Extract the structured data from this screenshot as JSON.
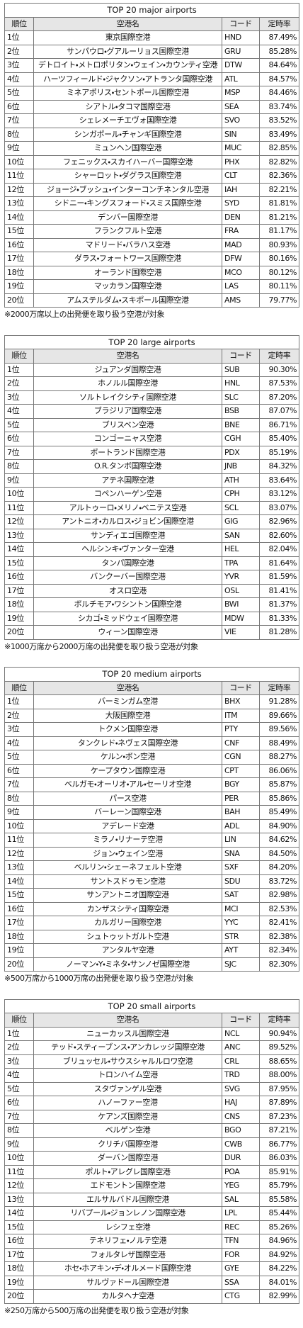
{
  "tables": [
    {
      "title": "TOP 20 major airports",
      "headers": [
        "順位",
        "空港名",
        "コード",
        "定時率"
      ],
      "rows": [
        [
          "1位",
          "東京国際空港",
          "HND",
          "87.49%"
        ],
        [
          "2位",
          "サンパウロ・グアルーリョス国際空港",
          "GRU",
          "85.28%"
        ],
        [
          "3位",
          "デトロイト・メトロポリタン・ウェイン・カウンティ空港",
          "DTW",
          "84.64%"
        ],
        [
          "4位",
          "ハーツフィールド・ジャクソン・アトランタ国際空港",
          "ATL",
          "84.57%"
        ],
        [
          "5位",
          "ミネアポリス・セントポール国際空港",
          "MSP",
          "84.46%"
        ],
        [
          "6位",
          "シアトル・タコマ国際空港",
          "SEA",
          "83.74%"
        ],
        [
          "7位",
          "シェレメーチエヴォ国際空港",
          "SVO",
          "83.52%"
        ],
        [
          "8位",
          "シンガポール・チャンギ国際空港",
          "SIN",
          "83.49%"
        ],
        [
          "9位",
          "ミュンヘン国際空港",
          "MUC",
          "82.85%"
        ],
        [
          "10位",
          "フェニックス・スカイハーバー国際空港",
          "PHX",
          "82.82%"
        ],
        [
          "11位",
          "シャーロット・ダグラス国際空港",
          "CLT",
          "82.36%"
        ],
        [
          "12位",
          "ジョージ・ブッシュ・インターコンチネンタル空港",
          "IAH",
          "82.21%"
        ],
        [
          "13位",
          "シドニー・キングスフォード・スミス国際空港",
          "SYD",
          "81.81%"
        ],
        [
          "14位",
          "デンバー国際空港",
          "DEN",
          "81.21%"
        ],
        [
          "15位",
          "フランクフルト空港",
          "FRA",
          "81.17%"
        ],
        [
          "16位",
          "マドリード・バラハス空港",
          "MAD",
          "80.93%"
        ],
        [
          "17位",
          "ダラス・フォートワース国際空港",
          "DFW",
          "80.16%"
        ],
        [
          "18位",
          "オーランド国際空港",
          "MCO",
          "80.12%"
        ],
        [
          "19位",
          "マッカラン国際空港",
          "LAS",
          "80.11%"
        ],
        [
          "20位",
          "アムステルダム・スキポール国際空港",
          "AMS",
          "79.77%"
        ]
      ],
      "note": "※2000万席以上の出発便を取り扱う空港が対象"
    },
    {
      "title": "TOP 20 large airports",
      "headers": [
        "順位",
        "空港名",
        "コード",
        "定時率"
      ],
      "rows": [
        [
          "1位",
          "ジュアンダ国際空港",
          "SUB",
          "90.30%"
        ],
        [
          "2位",
          "ホノルル国際空港",
          "HNL",
          "87.53%"
        ],
        [
          "3位",
          "ソルトレイクシティ国際空港",
          "SLC",
          "87.20%"
        ],
        [
          "4位",
          "ブラジリア国際空港",
          "BSB",
          "87.07%"
        ],
        [
          "5位",
          "ブリスベン空港",
          "BNE",
          "86.71%"
        ],
        [
          "6位",
          "コンゴーニャス空港",
          "CGH",
          "85.40%"
        ],
        [
          "7位",
          "ポートランド国際空港",
          "PDX",
          "85.19%"
        ],
        [
          "8位",
          "O.R.タンボ国際空港",
          "JNB",
          "84.32%"
        ],
        [
          "9位",
          "アテネ国際空港",
          "ATH",
          "83.64%"
        ],
        [
          "10位",
          "コペンハーゲン空港",
          "CPH",
          "83.12%"
        ],
        [
          "11位",
          "アルトゥーロ・メリノ・ベニテス空港",
          "SCL",
          "83.07%"
        ],
        [
          "12位",
          "アントニオ・カルロス・ジョビン国際空港",
          "GIG",
          "82.96%"
        ],
        [
          "13位",
          "サンディエゴ国際空港",
          "SAN",
          "82.60%"
        ],
        [
          "14位",
          "ヘルシンキ・ヴァンター空港",
          "HEL",
          "82.04%"
        ],
        [
          "15位",
          "タンパ国際空港",
          "TPA",
          "81.64%"
        ],
        [
          "16位",
          "バンクーバー国際空港",
          "YVR",
          "81.59%"
        ],
        [
          "17位",
          "オスロ空港",
          "OSL",
          "81.41%"
        ],
        [
          "18位",
          "ボルチモア・ワシントン国際空港",
          "BWI",
          "81.37%"
        ],
        [
          "19位",
          "シカゴ・ミッドウェイ国際空港",
          "MDW",
          "81.33%"
        ],
        [
          "20位",
          "ウィーン国際空港",
          "VIE",
          "81.28%"
        ]
      ],
      "note": "※1000万席から2000万席の出発便を取り扱う空港が対象"
    },
    {
      "title": "TOP 20 medium airports",
      "headers": [
        "順位",
        "空港名",
        "コード",
        "定時率"
      ],
      "rows": [
        [
          "1位",
          "バーミンガム空港",
          "BHX",
          "91.28%"
        ],
        [
          "2位",
          "大阪国際空港",
          "ITM",
          "89.66%"
        ],
        [
          "3位",
          "トクメン国際空港",
          "PTY",
          "89.56%"
        ],
        [
          "4位",
          "タンクレド・ネヴェス国際空港",
          "CNF",
          "88.49%"
        ],
        [
          "5位",
          "ケルン・ボン空港",
          "CGN",
          "88.27%"
        ],
        [
          "6位",
          "ケープタウン国際空港",
          "CPT",
          "86.06%"
        ],
        [
          "7位",
          "ベルガモ・オーリオ・アル・セーリオ空港",
          "BGY",
          "85.87%"
        ],
        [
          "8位",
          "パース空港",
          "PER",
          "85.86%"
        ],
        [
          "9位",
          "バーレーン国際空港",
          "BAH",
          "85.49%"
        ],
        [
          "10位",
          "アデレード空港",
          "ADL",
          "84.90%"
        ],
        [
          "11位",
          "ミラノ・リナーテ空港",
          "LIN",
          "84.62%"
        ],
        [
          "12位",
          "ジョン・ウェイン空港",
          "SNA",
          "84.50%"
        ],
        [
          "13位",
          "ベルリン・シェーネフェルト空港",
          "SXF",
          "84.20%"
        ],
        [
          "14位",
          "サントスドゥモン空港",
          "SDU",
          "83.72%"
        ],
        [
          "15位",
          "サンアントニオ国際空港",
          "SAT",
          "82.98%"
        ],
        [
          "16位",
          "カンザスシティ国際空港",
          "MCI",
          "82.53%"
        ],
        [
          "17位",
          "カルガリー国際空港",
          "YYC",
          "82.41%"
        ],
        [
          "18位",
          "シュトゥットガルト空港",
          "STR",
          "82.38%"
        ],
        [
          "19位",
          "アンタルヤ空港",
          "AYT",
          "82.34%"
        ],
        [
          "20位",
          "ノーマン・Y・ミネタ・サンノゼ国際空港",
          "SJC",
          "82.30%"
        ]
      ],
      "note": "※500万席から1000万席の出発便を取り扱う空港が対象"
    },
    {
      "title": "TOP 20 small airports",
      "headers": [
        "順位",
        "空港名",
        "コード",
        "定時率"
      ],
      "rows": [
        [
          "1位",
          "ニューカッスル国際空港",
          "NCL",
          "90.94%"
        ],
        [
          "2位",
          "テッド・スティーブンス・アンカレッジ国際空港",
          "ANC",
          "89.52%"
        ],
        [
          "3位",
          "ブリュッセル・サウスシャルルロワ空港",
          "CRL",
          "88.65%"
        ],
        [
          "4位",
          "トロンハイム空港",
          "TRD",
          "88.00%"
        ],
        [
          "5位",
          "スタヴァンゲル空港",
          "SVG",
          "87.95%"
        ],
        [
          "6位",
          "ハノーファー空港",
          "HAJ",
          "87.89%"
        ],
        [
          "7位",
          "ケアンズ国際空港",
          "CNS",
          "87.23%"
        ],
        [
          "8位",
          "ベルゲン空港",
          "BGO",
          "87.21%"
        ],
        [
          "9位",
          "クリチバ国際空港",
          "CWB",
          "86.77%"
        ],
        [
          "10位",
          "ダーバン国際空港",
          "DUR",
          "86.03%"
        ],
        [
          "11位",
          "ポルト・アレグレ国際空港",
          "POA",
          "85.91%"
        ],
        [
          "12位",
          "エドモントン国際空港",
          "YEG",
          "85.79%"
        ],
        [
          "13位",
          "エルサルバドル国際空港",
          "SAL",
          "85.58%"
        ],
        [
          "14位",
          "リバプール・ジョンレノン国際空港",
          "LPL",
          "85.44%"
        ],
        [
          "15位",
          "レシフェ空港",
          "REC",
          "85.26%"
        ],
        [
          "16位",
          "テネリフェ・ノルテ空港",
          "TFN",
          "84.96%"
        ],
        [
          "17位",
          "フォルタレザ国際空港",
          "FOR",
          "84.92%"
        ],
        [
          "18位",
          "ホセ・ホアキン・デ・オルメード国際空港",
          "GYE",
          "84.22%"
        ],
        [
          "19位",
          "サルヴァドール国際空港",
          "SSA",
          "84.01%"
        ],
        [
          "20位",
          "カルタヘナ空港",
          "CTG",
          "82.99%"
        ]
      ],
      "note": "※250万席から500万席の出発便を取り扱う空港が対象"
    }
  ]
}
